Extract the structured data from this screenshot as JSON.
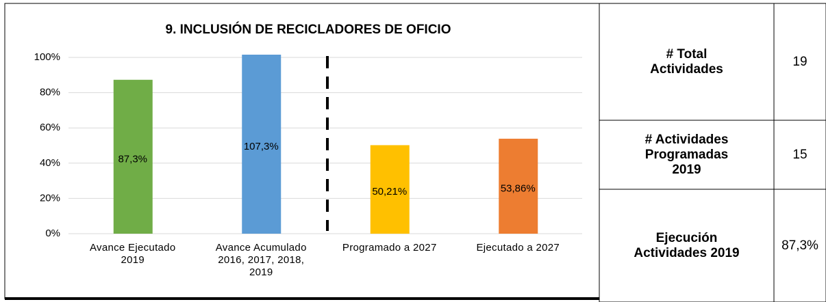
{
  "chart_data": {
    "type": "bar",
    "title": "9. INCLUSIÓN DE RECICLADORES DE OFICIO",
    "categories": [
      "Avance Ejecutado 2019",
      "Avance Acumulado 2016, 2017, 2018, 2019",
      "Programado a 2027",
      "Ejecutado a 2027"
    ],
    "values": [
      87.3,
      107.3,
      50.21,
      53.86
    ],
    "value_labels": [
      "87,3%",
      "107,3%",
      "50,21%",
      "53,86%"
    ],
    "colors": [
      "#70ad47",
      "#5b9bd5",
      "#ffc000",
      "#ed7d31"
    ],
    "ylim": [
      0,
      100
    ],
    "yticks": [
      {
        "value": 0,
        "label": "0%"
      },
      {
        "value": 20,
        "label": "20%"
      },
      {
        "value": 40,
        "label": "40%"
      },
      {
        "value": 60,
        "label": "60%"
      },
      {
        "value": 80,
        "label": "80%"
      },
      {
        "value": 100,
        "label": "100%"
      }
    ],
    "grid": true
  },
  "table": {
    "rows": [
      [
        [
          "# Total",
          "Actividades"
        ],
        "19"
      ],
      [
        [
          "# Actividades",
          "Programadas",
          "2019"
        ],
        "15"
      ],
      [
        [
          "Ejecución",
          "Actividades 2019"
        ],
        "87,3%"
      ]
    ]
  }
}
